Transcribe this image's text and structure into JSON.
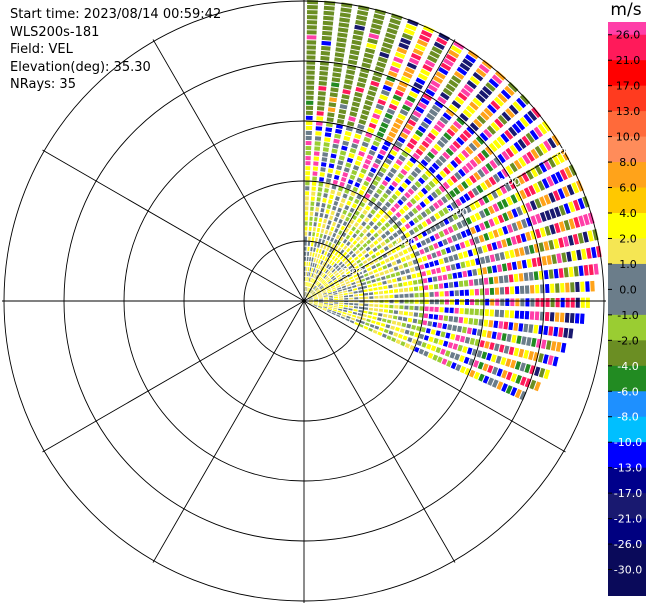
{
  "header": {
    "start_time": "Start time: 2023/08/14 00:59:42",
    "instrument": "WLS200s-181",
    "field": "Field: VEL",
    "elevation": "Elevation(deg): 35.30",
    "nrays": "NRays: 35"
  },
  "chart_data": {
    "type": "heatmap",
    "projection": "polar",
    "grid": true,
    "range_ring_labels": [
      "1.00",
      "2.00",
      "3.00",
      "4.00",
      "5.00"
    ],
    "sector_azimuth_deg": [
      0,
      115
    ],
    "rays": 35,
    "colorbar": {
      "unit": "m/s",
      "ticks": [
        "26.0",
        "21.0",
        "17.0",
        "13.0",
        "10.0",
        "8.0",
        "6.0",
        "4.0",
        "2.0",
        "1.0",
        "0.0",
        "-1.0",
        "-2.0",
        "-4.0",
        "-6.0",
        "-8.0",
        "-10.0",
        "-13.0",
        "-17.0",
        "-21.0",
        "-26.0",
        "-30.0"
      ],
      "colors": [
        "#ffffff",
        "#ff3fa8",
        "#ff1a5a",
        "#ff0000",
        "#ff3b1f",
        "#ff6a3a",
        "#ff8c5a",
        "#ffa31a",
        "#ffc800",
        "#ffff00",
        "#f5e653",
        "#6b7d8a",
        "#6b7d8a",
        "#9acd32",
        "#6b8e23",
        "#228b22",
        "#1e90ff",
        "#00bfff",
        "#0000ff",
        "#00008b",
        "#191970",
        "#000080",
        "#0a0a5a"
      ]
    },
    "velocity_profile_by_ring": [
      {
        "ring": 1,
        "dominant": [
          "#ffff00",
          "#f5e653",
          "#6b7d8a"
        ]
      },
      {
        "ring": 2,
        "dominant": [
          "#ffff00",
          "#6b7d8a",
          "#9acd32",
          "#f5e653"
        ]
      },
      {
        "ring": 3,
        "dominant": [
          "#6b7d8a",
          "#ffff00",
          "#9acd32",
          "#0000ff",
          "#ff3fa8"
        ]
      },
      {
        "ring": 4,
        "dominant": [
          "#6b7d8a",
          "#ff3fa8",
          "#ffa31a",
          "#0000ff",
          "#ff1a5a",
          "#ffff00",
          "#228b22"
        ]
      },
      {
        "ring": 5,
        "dominant": [
          "#6b8e23",
          "#ff3fa8",
          "#ff1a5a",
          "#0000ff",
          "#ffa31a",
          "#191970",
          "#ffff00"
        ]
      }
    ]
  }
}
